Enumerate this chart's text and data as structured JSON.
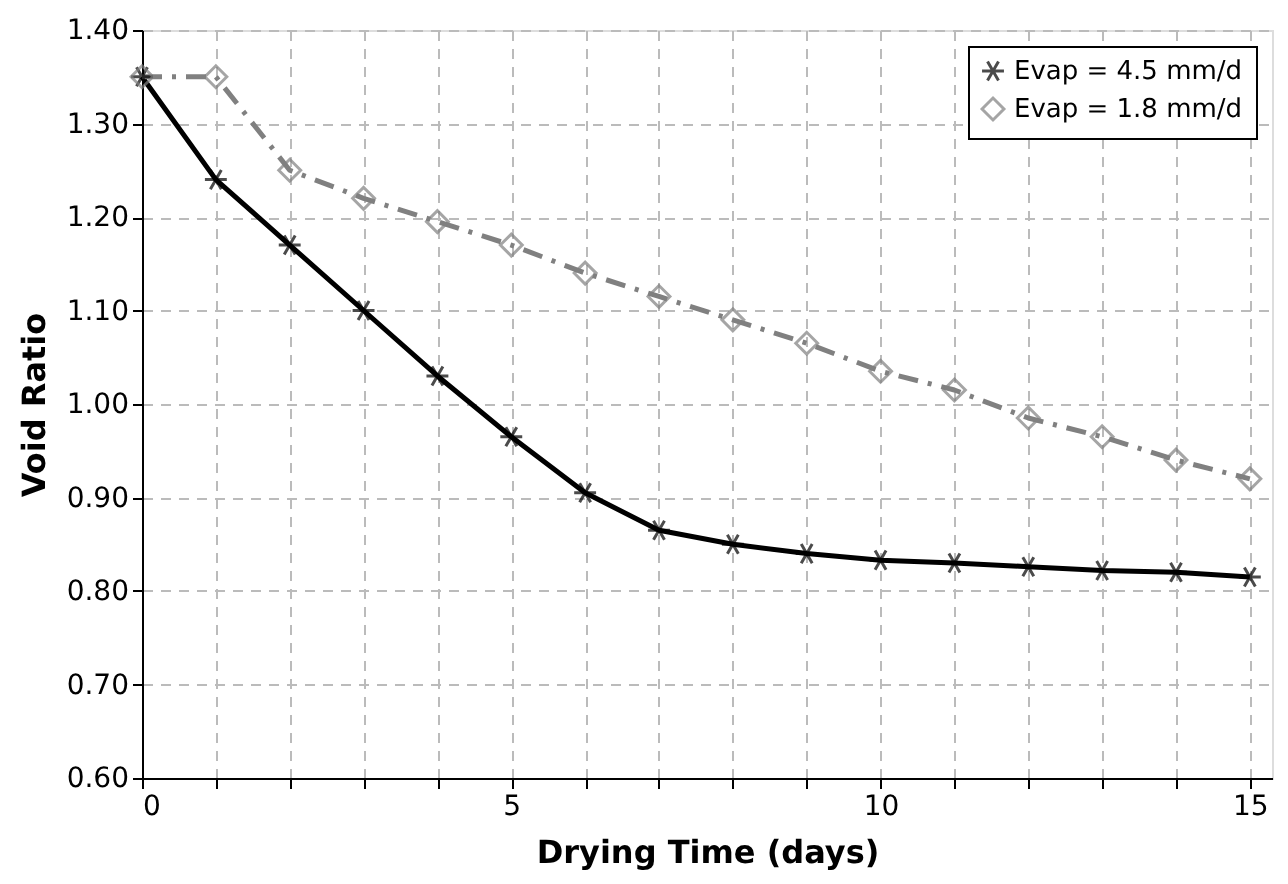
{
  "chart_data": {
    "type": "line",
    "xlabel": "Drying Time (days)",
    "ylabel": "Void Ratio",
    "x": [
      0,
      1,
      2,
      3,
      4,
      5,
      6,
      7,
      8,
      9,
      10,
      11,
      12,
      13,
      14,
      15
    ],
    "series": [
      {
        "name": "Evap = 4.5 mm/d",
        "color": "#000000",
        "marker": "cross",
        "line_style": "solid",
        "values": [
          1.35,
          1.24,
          1.17,
          1.1,
          1.03,
          0.965,
          0.905,
          0.865,
          0.85,
          0.84,
          0.833,
          0.83,
          0.826,
          0.822,
          0.82,
          0.815
        ]
      },
      {
        "name": "Evap = 1.8 mm/d",
        "color": "#808080",
        "marker": "diamond",
        "line_style": "dashed",
        "values": [
          1.35,
          1.35,
          1.25,
          1.22,
          1.195,
          1.17,
          1.14,
          1.115,
          1.09,
          1.065,
          1.035,
          1.015,
          0.985,
          0.965,
          0.94,
          0.92
        ]
      }
    ],
    "xlim": [
      0,
      15.3
    ],
    "xticks": [
      0,
      {
        "value": 1,
        "label": null
      },
      {
        "value": 2,
        "label": null
      },
      {
        "value": 3,
        "label": null
      },
      {
        "value": 4,
        "label": null
      },
      5,
      {
        "value": 6,
        "label": null
      },
      {
        "value": 7,
        "label": null
      },
      {
        "value": 8,
        "label": null
      },
      {
        "value": 9,
        "label": null
      },
      10,
      {
        "value": 11,
        "label": null
      },
      {
        "value": 12,
        "label": null
      },
      {
        "value": 13,
        "label": null
      },
      {
        "value": 14,
        "label": null
      },
      15
    ],
    "ylim": [
      0.6,
      1.4
    ],
    "yticks": [
      {
        "value": 0.6,
        "label": "0.60"
      },
      {
        "value": 0.7,
        "label": "0.70"
      },
      {
        "value": 0.8,
        "label": "0.80"
      },
      {
        "value": 0.9,
        "label": "0.90"
      },
      {
        "value": 1.0,
        "label": "1.00"
      },
      {
        "value": 1.1,
        "label": "1.10"
      },
      {
        "value": 1.2,
        "label": "1.20"
      },
      {
        "value": 1.3,
        "label": "1.30"
      },
      {
        "value": 1.4,
        "label": "1.40"
      }
    ],
    "grid": true,
    "legend": "top right"
  }
}
